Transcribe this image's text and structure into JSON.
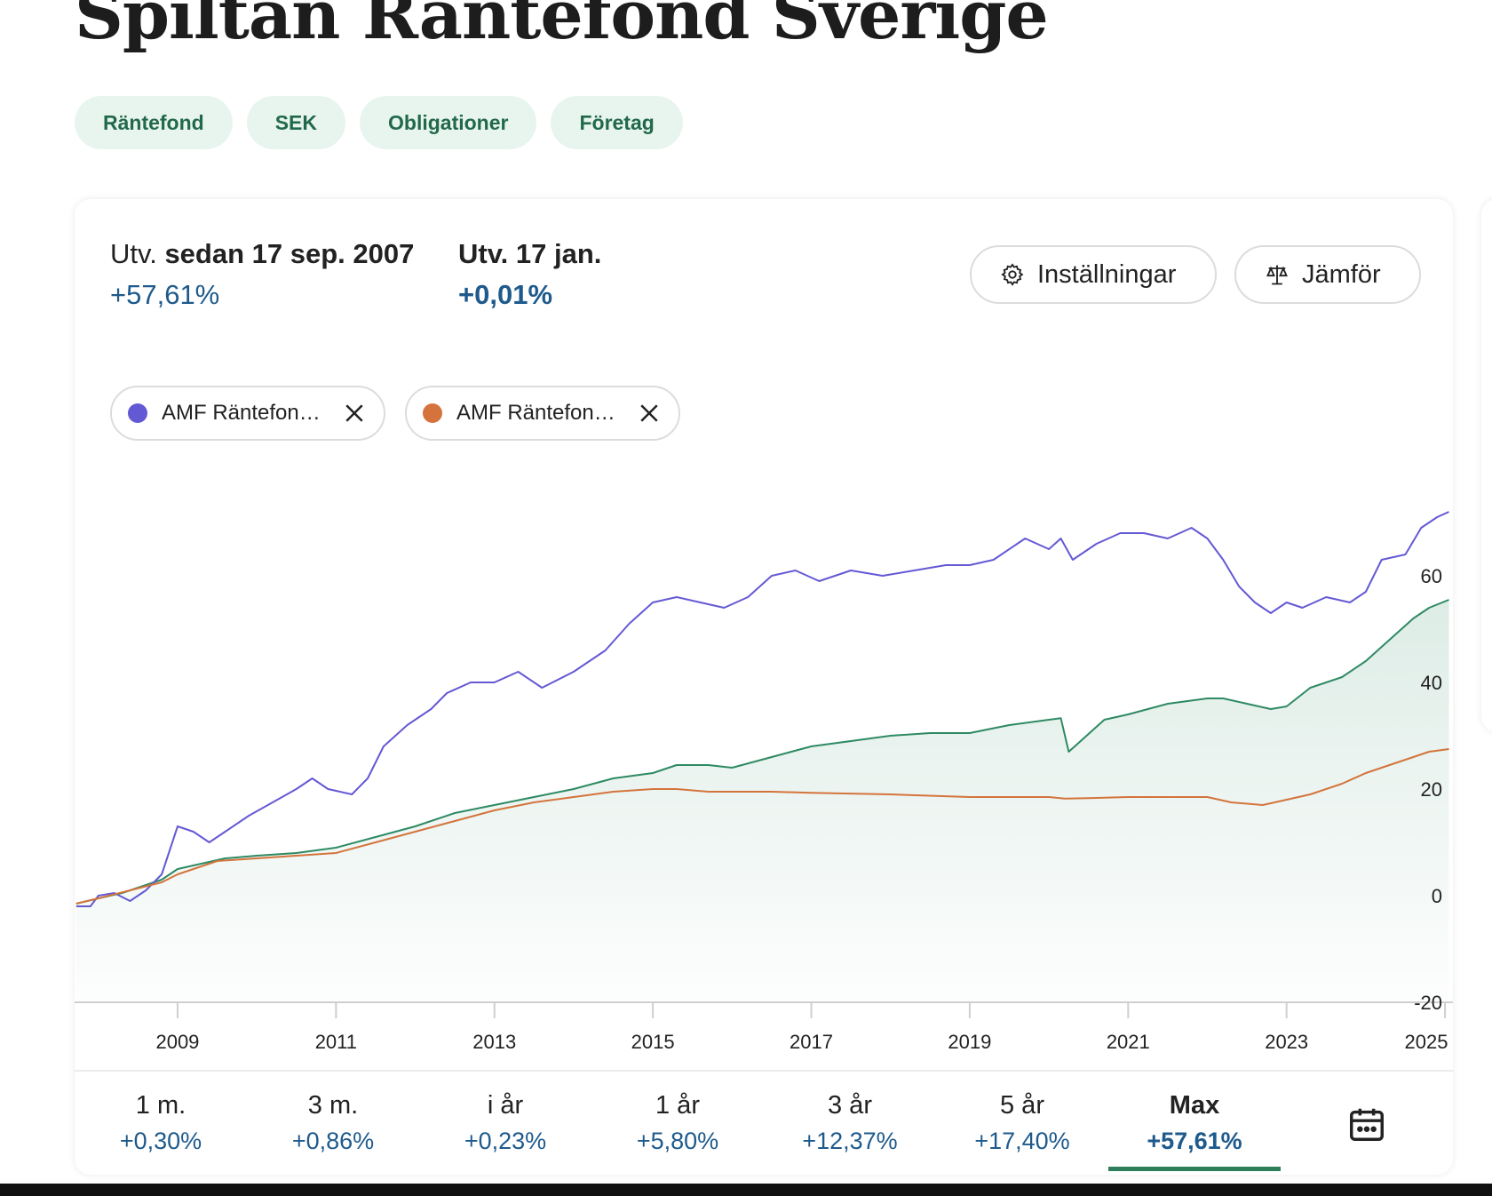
{
  "title": "Spiltan Räntefond Sverige",
  "tags": [
    "Räntefond",
    "SEK",
    "Obligationer",
    "Företag"
  ],
  "stats": {
    "since_prefix": "Utv.",
    "since_label": "sedan 17 sep. 2007",
    "since_value": "+57,61%",
    "day_label": "Utv. 17 jan.",
    "day_value": "+0,01%"
  },
  "buttons": {
    "settings": "Inställningar",
    "compare": "Jämför"
  },
  "compare_chips": [
    {
      "label": "AMF Räntefond Lång",
      "color": "#6459d4"
    },
    {
      "label": "AMF Räntefond Kort",
      "color": "#d4743c"
    }
  ],
  "periods": [
    {
      "label": "1 m.",
      "value": "+0,30%"
    },
    {
      "label": "3 m.",
      "value": "+0,86%"
    },
    {
      "label": "i år",
      "value": "+0,23%"
    },
    {
      "label": "1 år",
      "value": "+5,80%"
    },
    {
      "label": "3 år",
      "value": "+12,37%"
    },
    {
      "label": "5 år",
      "value": "+17,40%"
    },
    {
      "label": "Max",
      "value": "+57,61%",
      "active": true
    }
  ],
  "chart_data": {
    "type": "line",
    "x_ticks": [
      "2009",
      "2011",
      "2013",
      "2015",
      "2017",
      "2019",
      "2021",
      "2023",
      "2025"
    ],
    "y_ticks": [
      60,
      40,
      20,
      0,
      -20
    ],
    "ylim": [
      -20,
      75
    ],
    "xlim": [
      2007.7,
      2025.1
    ],
    "grid": false,
    "series": [
      {
        "color": "#2e8a63",
        "fill": true,
        "points": [
          [
            2007.72,
            -1.5
          ],
          [
            2008.0,
            -0.5
          ],
          [
            2008.3,
            0.5
          ],
          [
            2008.6,
            2
          ],
          [
            2008.8,
            3
          ],
          [
            2009.0,
            5
          ],
          [
            2009.3,
            6
          ],
          [
            2009.6,
            7
          ],
          [
            2010.0,
            7.5
          ],
          [
            2010.5,
            8
          ],
          [
            2011.0,
            9
          ],
          [
            2011.5,
            11
          ],
          [
            2012.0,
            13
          ],
          [
            2012.5,
            15.5
          ],
          [
            2013.0,
            17
          ],
          [
            2013.5,
            18.5
          ],
          [
            2014.0,
            20
          ],
          [
            2014.5,
            22
          ],
          [
            2015.0,
            23
          ],
          [
            2015.3,
            24.5
          ],
          [
            2015.7,
            24.5
          ],
          [
            2016.0,
            24
          ],
          [
            2016.5,
            26
          ],
          [
            2017.0,
            28
          ],
          [
            2017.5,
            29
          ],
          [
            2018.0,
            30
          ],
          [
            2018.5,
            30.5
          ],
          [
            2019.0,
            30.5
          ],
          [
            2019.5,
            32
          ],
          [
            2020.0,
            33
          ],
          [
            2020.15,
            33.3
          ],
          [
            2020.25,
            27
          ],
          [
            2020.4,
            29
          ],
          [
            2020.7,
            33
          ],
          [
            2021.0,
            34
          ],
          [
            2021.5,
            36
          ],
          [
            2022.0,
            37
          ],
          [
            2022.2,
            37
          ],
          [
            2022.5,
            36
          ],
          [
            2022.8,
            35
          ],
          [
            2023.0,
            35.5
          ],
          [
            2023.3,
            39
          ],
          [
            2023.7,
            41
          ],
          [
            2024.0,
            44
          ],
          [
            2024.3,
            48
          ],
          [
            2024.6,
            52
          ],
          [
            2024.8,
            54
          ],
          [
            2025.05,
            55.5
          ]
        ]
      },
      {
        "name": "AMF Räntefond Lång",
        "color": "#6459d4",
        "fill": false,
        "points": [
          [
            2007.72,
            -2
          ],
          [
            2007.9,
            -2
          ],
          [
            2008.0,
            0
          ],
          [
            2008.2,
            0.5
          ],
          [
            2008.4,
            -1
          ],
          [
            2008.6,
            1
          ],
          [
            2008.8,
            4
          ],
          [
            2009.0,
            13
          ],
          [
            2009.2,
            12
          ],
          [
            2009.4,
            10
          ],
          [
            2009.6,
            12
          ],
          [
            2009.9,
            15
          ],
          [
            2010.2,
            17.5
          ],
          [
            2010.5,
            20
          ],
          [
            2010.7,
            22
          ],
          [
            2010.9,
            20
          ],
          [
            2011.2,
            19
          ],
          [
            2011.4,
            22
          ],
          [
            2011.6,
            28
          ],
          [
            2011.9,
            32
          ],
          [
            2012.2,
            35
          ],
          [
            2012.4,
            38
          ],
          [
            2012.7,
            40
          ],
          [
            2013.0,
            40
          ],
          [
            2013.3,
            42
          ],
          [
            2013.6,
            39
          ],
          [
            2014.0,
            42
          ],
          [
            2014.4,
            46
          ],
          [
            2014.7,
            51
          ],
          [
            2015.0,
            55
          ],
          [
            2015.3,
            56
          ],
          [
            2015.6,
            55
          ],
          [
            2015.9,
            54
          ],
          [
            2016.2,
            56
          ],
          [
            2016.5,
            60
          ],
          [
            2016.8,
            61
          ],
          [
            2017.1,
            59
          ],
          [
            2017.5,
            61
          ],
          [
            2017.9,
            60
          ],
          [
            2018.3,
            61
          ],
          [
            2018.7,
            62
          ],
          [
            2019.0,
            62
          ],
          [
            2019.3,
            63
          ],
          [
            2019.7,
            67
          ],
          [
            2020.0,
            65
          ],
          [
            2020.15,
            67
          ],
          [
            2020.3,
            63
          ],
          [
            2020.6,
            66
          ],
          [
            2020.9,
            68
          ],
          [
            2021.2,
            68
          ],
          [
            2021.5,
            67
          ],
          [
            2021.8,
            69
          ],
          [
            2022.0,
            67
          ],
          [
            2022.2,
            63
          ],
          [
            2022.4,
            58
          ],
          [
            2022.6,
            55
          ],
          [
            2022.8,
            53
          ],
          [
            2023.0,
            55
          ],
          [
            2023.2,
            54
          ],
          [
            2023.5,
            56
          ],
          [
            2023.8,
            55
          ],
          [
            2024.0,
            57
          ],
          [
            2024.2,
            63
          ],
          [
            2024.5,
            64
          ],
          [
            2024.7,
            69
          ],
          [
            2024.9,
            71
          ],
          [
            2025.05,
            72
          ]
        ]
      },
      {
        "name": "AMF Räntefond Kort",
        "color": "#d4743c",
        "fill": false,
        "points": [
          [
            2007.72,
            -1.5
          ],
          [
            2008.0,
            -0.5
          ],
          [
            2008.4,
            1
          ],
          [
            2008.8,
            2.5
          ],
          [
            2009.0,
            4
          ],
          [
            2009.5,
            6.5
          ],
          [
            2010.0,
            7
          ],
          [
            2010.5,
            7.5
          ],
          [
            2011.0,
            8
          ],
          [
            2011.5,
            10
          ],
          [
            2012.0,
            12
          ],
          [
            2012.5,
            14
          ],
          [
            2013.0,
            16
          ],
          [
            2013.5,
            17.5
          ],
          [
            2014.0,
            18.5
          ],
          [
            2014.5,
            19.5
          ],
          [
            2015.0,
            20
          ],
          [
            2015.3,
            20
          ],
          [
            2015.7,
            19.5
          ],
          [
            2016.0,
            19.5
          ],
          [
            2016.5,
            19.5
          ],
          [
            2017.0,
            19.3
          ],
          [
            2018.0,
            19
          ],
          [
            2019.0,
            18.5
          ],
          [
            2020.0,
            18.5
          ],
          [
            2020.2,
            18.2
          ],
          [
            2020.5,
            18.3
          ],
          [
            2021.0,
            18.5
          ],
          [
            2021.5,
            18.5
          ],
          [
            2022.0,
            18.5
          ],
          [
            2022.3,
            17.5
          ],
          [
            2022.7,
            17
          ],
          [
            2023.0,
            18
          ],
          [
            2023.3,
            19
          ],
          [
            2023.7,
            21
          ],
          [
            2024.0,
            23
          ],
          [
            2024.3,
            24.5
          ],
          [
            2024.6,
            26
          ],
          [
            2024.8,
            27
          ],
          [
            2025.05,
            27.5
          ]
        ]
      }
    ]
  }
}
